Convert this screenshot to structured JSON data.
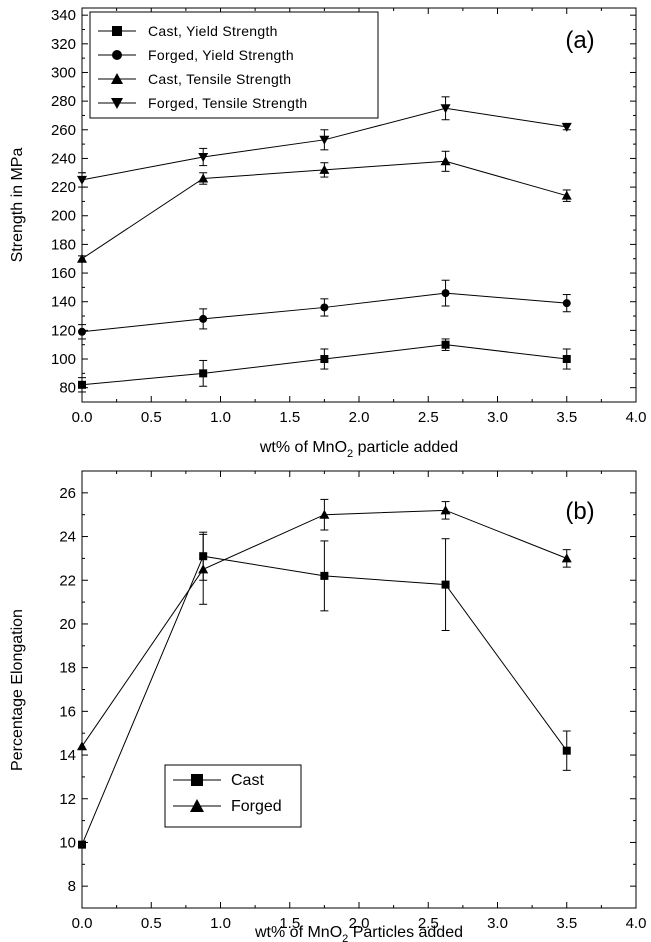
{
  "chart_data": [
    {
      "type": "line",
      "panel_label": "(a)",
      "xlabel_parts": [
        "wt% of MnO",
        "2",
        " particle added"
      ],
      "ylabel": "Strength in MPa",
      "xlim": [
        0.0,
        4.0
      ],
      "ylim": [
        70,
        345
      ],
      "xticks": [
        "0.0",
        "0.5",
        "1.0",
        "1.5",
        "2.0",
        "2.5",
        "3.0",
        "3.5",
        "4.0"
      ],
      "yticks": [
        "80",
        "100",
        "120",
        "140",
        "160",
        "180",
        "200",
        "220",
        "240",
        "260",
        "280",
        "300",
        "320",
        "340"
      ],
      "legend_position": "top-left",
      "x": [
        0.0,
        0.875,
        1.75,
        2.625,
        3.5
      ],
      "series": [
        {
          "name": "Cast, Yield Strength",
          "marker": "square",
          "values": [
            82,
            90,
            100,
            110,
            100
          ],
          "error": [
            5,
            9,
            7,
            4,
            7
          ]
        },
        {
          "name": "Forged, Yield Strength",
          "marker": "circle",
          "values": [
            119,
            128,
            136,
            146,
            139
          ],
          "error": [
            5,
            7,
            6,
            9,
            6
          ]
        },
        {
          "name": "Cast, Tensile Strength",
          "marker": "triangle-up",
          "values": [
            170,
            226,
            232,
            238,
            214
          ],
          "error": [
            2,
            4,
            5,
            7,
            4
          ]
        },
        {
          "name": "Forged, Tensile Strength",
          "marker": "triangle-down",
          "values": [
            225,
            241,
            253,
            275,
            262
          ],
          "error": [
            5,
            6,
            7,
            8,
            2
          ]
        }
      ]
    },
    {
      "type": "line",
      "panel_label": "(b)",
      "xlabel_parts": [
        "wt% of MnO",
        "2",
        " Particles added"
      ],
      "ylabel": "Percentage Elongation",
      "xlim": [
        0.0,
        4.0
      ],
      "ylim": [
        7,
        27
      ],
      "xticks": [
        "0.0",
        "0.5",
        "1.0",
        "1.5",
        "2.0",
        "2.5",
        "3.0",
        "3.5",
        "4.0"
      ],
      "yticks": [
        "8",
        "10",
        "12",
        "14",
        "16",
        "18",
        "20",
        "22",
        "24",
        "26"
      ],
      "legend_position": "lower-left",
      "x": [
        0.0,
        0.875,
        1.75,
        2.625,
        3.5
      ],
      "series": [
        {
          "name": "Cast",
          "marker": "square",
          "values": [
            9.9,
            23.1,
            22.2,
            21.8,
            14.2
          ],
          "error": [
            0,
            1.1,
            1.6,
            2.1,
            0.9
          ]
        },
        {
          "name": "Forged",
          "marker": "triangle-up",
          "values": [
            14.4,
            22.5,
            25.0,
            25.2,
            23.0
          ],
          "error": [
            0,
            1.6,
            0.7,
            0.4,
            0.4
          ]
        }
      ]
    }
  ]
}
